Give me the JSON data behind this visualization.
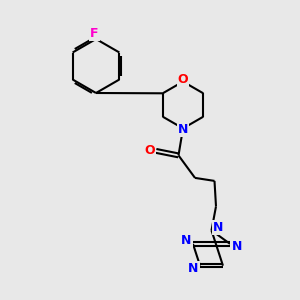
{
  "background_color": "#e8e8e8",
  "bond_color": "#000000",
  "nitrogen_color": "#0000ff",
  "oxygen_color": "#ff0000",
  "fluorine_color": "#ff00cc",
  "bond_width": 1.5,
  "figsize": [
    3.0,
    3.0
  ],
  "dpi": 100,
  "xlim": [
    0,
    10
  ],
  "ylim": [
    0,
    10
  ]
}
